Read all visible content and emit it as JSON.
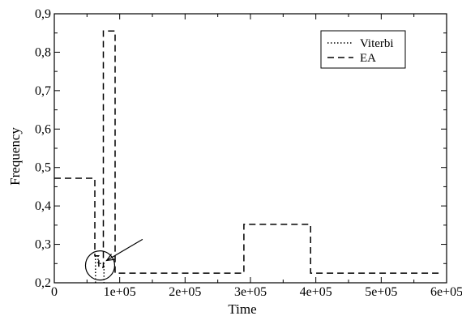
{
  "chart_data": {
    "type": "line",
    "title": "",
    "xlabel": "Time",
    "ylabel": "Frequency",
    "xlim": [
      0,
      600000
    ],
    "ylim": [
      0.2,
      0.9
    ],
    "x_ticks": [
      0,
      100000,
      200000,
      300000,
      400000,
      500000,
      600000
    ],
    "x_tick_labels": [
      "0",
      "1e+05",
      "2e+05",
      "3e+05",
      "4e+05",
      "5e+05",
      "6e+05"
    ],
    "y_ticks": [
      0.2,
      0.3,
      0.4,
      0.5,
      0.6,
      0.7,
      0.8,
      0.9
    ],
    "y_tick_labels": [
      "0,2",
      "0,3",
      "0,4",
      "0,5",
      "0,6",
      "0,7",
      "0,8",
      "0,9"
    ],
    "grid": false,
    "legend_position": "top-right",
    "series": [
      {
        "name": "Viterbi",
        "style": "dotted",
        "x": [
          63000,
          63000,
          67000,
          67000,
          76000,
          76000
        ],
        "y": [
          0.2,
          0.27,
          0.27,
          0.25,
          0.25,
          0.2
        ]
      },
      {
        "name": "EA",
        "style": "dashed",
        "x": [
          0,
          62000,
          62000,
          68000,
          68000,
          75000,
          75000,
          93000,
          93000,
          290000,
          290000,
          392000,
          392000,
          590000
        ],
        "y": [
          0.472,
          0.472,
          0.27,
          0.27,
          0.24,
          0.24,
          0.855,
          0.855,
          0.225,
          0.225,
          0.352,
          0.352,
          0.225,
          0.225
        ]
      }
    ],
    "annotations": [
      {
        "type": "circle",
        "x": 70000,
        "y": 0.245,
        "note": "highlights Viterbi segment"
      },
      {
        "type": "arrow",
        "from": [
          135000,
          0.313
        ],
        "to": [
          80000,
          0.258
        ]
      }
    ]
  }
}
